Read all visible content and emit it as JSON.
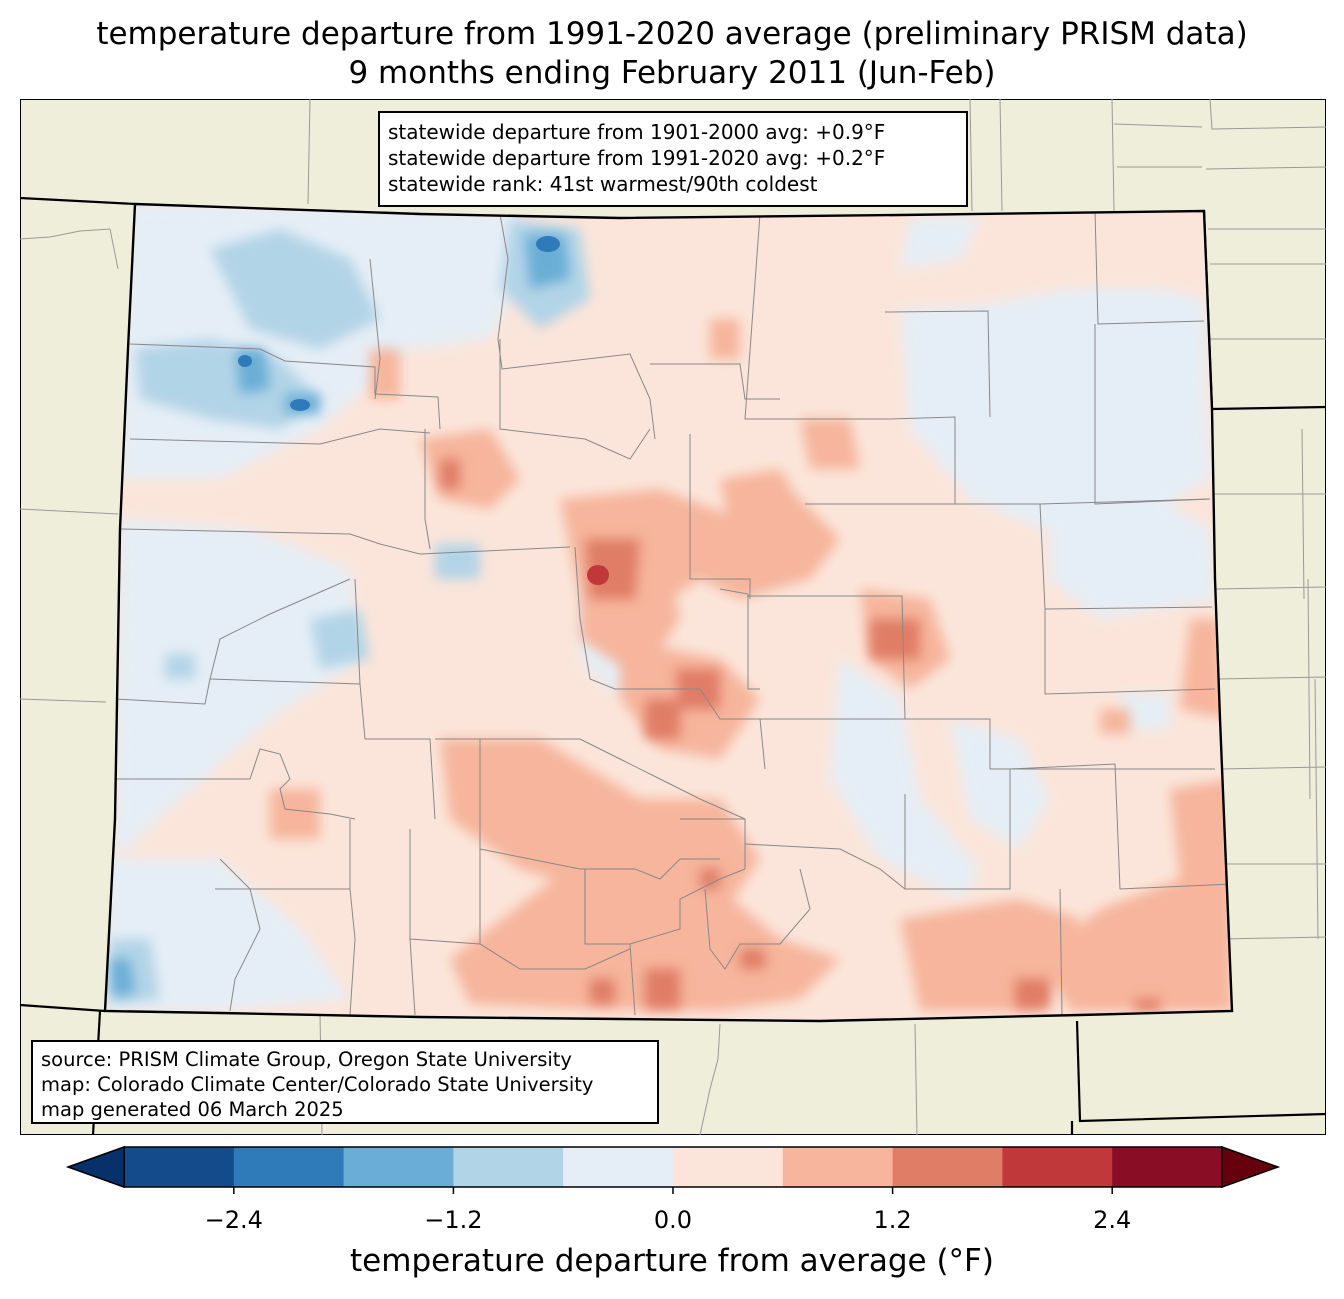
{
  "title": {
    "line1": "temperature departure from 1991-2020 average (preliminary PRISM data)",
    "line2": "9 months ending February 2011 (Jun-Feb)"
  },
  "stats": {
    "line1": "statewide departure from 1901-2000 avg: +0.9°F",
    "line2": "statewide departure from 1991-2020 avg: +0.2°F",
    "line3": "statewide rank: 41st warmest/90th coldest"
  },
  "source": {
    "line1": "source: PRISM Climate Group, Oregon State University",
    "line2": "map: Colorado Climate Center/Colorado State University",
    "line3": "map generated 06 March 2025"
  },
  "colorbar": {
    "label": "temperature departure from average (°F)",
    "ticks": [
      "−2.4",
      "−1.2",
      "0.0",
      "1.2",
      "2.4"
    ],
    "bins": [
      -3.0,
      -2.4,
      -1.8,
      -1.2,
      -0.6,
      0.0,
      0.6,
      1.2,
      1.8,
      2.4,
      3.0
    ],
    "colors": [
      "#144b8a",
      "#2f7ab9",
      "#6aaed6",
      "#b2d4e7",
      "#e5eef6",
      "#fbe5da",
      "#f6b59c",
      "#e07d66",
      "#c0383a",
      "#880d25"
    ],
    "under_color": "#08306b",
    "over_color": "#67000d"
  },
  "map_colors": {
    "land": "#efeedb",
    "state_outline": "#000000",
    "county_line": "#888888"
  }
}
